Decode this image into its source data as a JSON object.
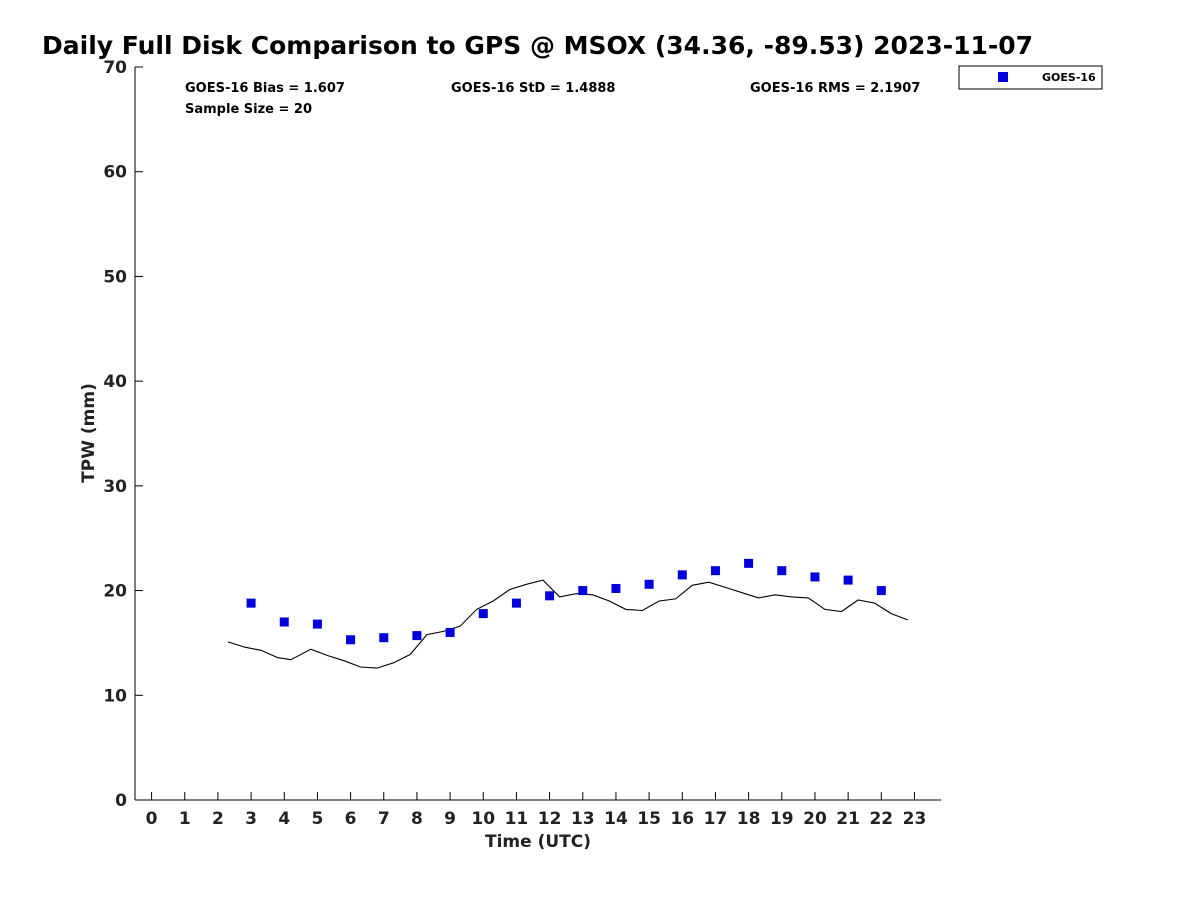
{
  "chart_data": {
    "type": "scatter",
    "title": "Daily Full Disk Comparison to GPS @ MSOX (34.36, -89.53) 2023-11-07",
    "xlabel": "Time (UTC)",
    "ylabel": "TPW (mm)",
    "xlim": [
      -0.5,
      23.8
    ],
    "ylim": [
      0,
      70
    ],
    "x_ticks": [
      0,
      1,
      2,
      3,
      4,
      5,
      6,
      7,
      8,
      9,
      10,
      11,
      12,
      13,
      14,
      15,
      16,
      17,
      18,
      19,
      20,
      21,
      22,
      23
    ],
    "y_ticks": [
      0,
      10,
      20,
      30,
      40,
      50,
      60,
      70
    ],
    "grid": false,
    "legend_position": "top-right",
    "stats": {
      "bias": "GOES-16 Bias = 1.607",
      "std": "GOES-16 StD = 1.4888",
      "rms": "GOES-16 RMS = 2.1907",
      "sample": "Sample Size = 20"
    },
    "series": [
      {
        "name": "GOES-16",
        "kind": "marker",
        "color": "#0000dd",
        "x": [
          3,
          4,
          5,
          6,
          7,
          8,
          9,
          10,
          11,
          12,
          13,
          14,
          15,
          16,
          17,
          18,
          19,
          20,
          21,
          22
        ],
        "y": [
          18.8,
          17.0,
          16.8,
          15.3,
          15.5,
          15.7,
          16.0,
          17.8,
          18.8,
          19.5,
          20.0,
          20.2,
          20.6,
          21.5,
          21.9,
          22.6,
          21.9,
          21.3,
          21.0,
          20.0
        ]
      },
      {
        "kind": "line",
        "color": "#000000",
        "x": [
          2.3,
          2.8,
          3.3,
          3.8,
          4.2,
          4.8,
          5.3,
          5.8,
          6.3,
          6.8,
          7.3,
          7.8,
          8.3,
          8.8,
          9.3,
          9.8,
          10.3,
          10.8,
          11.3,
          11.8,
          12.3,
          12.8,
          13.3,
          13.8,
          14.3,
          14.8,
          15.3,
          15.8,
          16.3,
          16.8,
          17.3,
          17.8,
          18.3,
          18.8,
          19.3,
          19.8,
          20.3,
          20.8,
          21.3,
          21.8,
          22.3,
          22.8
        ],
        "y": [
          15.1,
          14.6,
          14.3,
          13.6,
          13.4,
          14.4,
          13.8,
          13.3,
          12.7,
          12.6,
          13.1,
          13.9,
          15.8,
          16.1,
          16.6,
          18.2,
          19.0,
          20.1,
          20.6,
          21.0,
          19.4,
          19.7,
          19.6,
          19.0,
          18.2,
          18.1,
          19.0,
          19.2,
          20.5,
          20.8,
          20.3,
          19.8,
          19.3,
          19.6,
          19.4,
          19.3,
          18.2,
          18.0,
          19.1,
          18.8,
          17.8,
          17.2
        ]
      }
    ]
  }
}
